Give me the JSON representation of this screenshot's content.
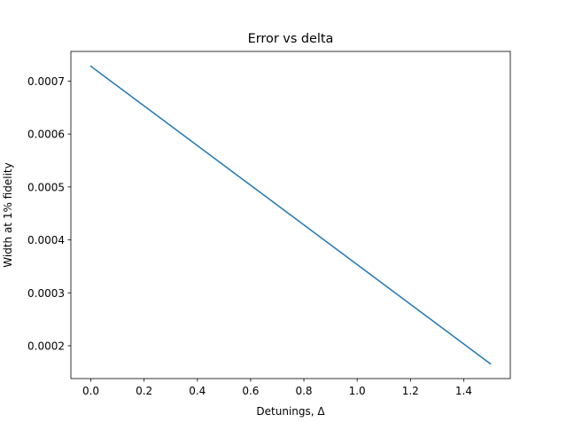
{
  "chart_data": {
    "type": "line",
    "title": "Error vs delta",
    "xlabel": "Detunings, Δ",
    "ylabel": "Width at 1% fidelity",
    "xlim": [
      -0.075,
      1.575
    ],
    "ylim": [
      0.000138,
      0.000756
    ],
    "xticks": [
      0.0,
      0.2,
      0.4,
      0.6,
      0.8,
      1.0,
      1.2,
      1.4
    ],
    "xtick_labels": [
      "0.0",
      "0.2",
      "0.4",
      "0.6",
      "0.8",
      "1.0",
      "1.2",
      "1.4"
    ],
    "yticks": [
      0.0002,
      0.0003,
      0.0004,
      0.0005,
      0.0006,
      0.0007
    ],
    "ytick_labels": [
      "0.0002",
      "0.0003",
      "0.0004",
      "0.0005",
      "0.0006",
      "0.0007"
    ],
    "grid": false,
    "series": [
      {
        "color": "#1f77b4",
        "x": [
          0.0,
          1.5
        ],
        "y": [
          0.000728,
          0.000166
        ]
      }
    ]
  }
}
